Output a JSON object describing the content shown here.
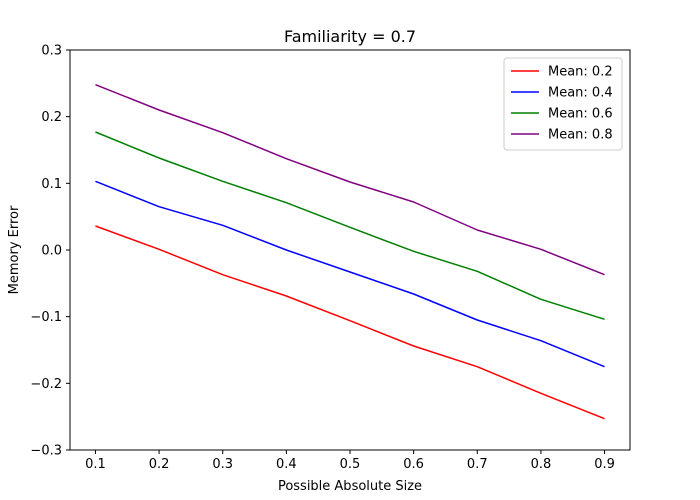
{
  "chart_data": {
    "type": "line",
    "title": "Familiarity = 0.7",
    "xlabel": "Possible Absolute Size",
    "ylabel": "Memory Error",
    "x": [
      0.1,
      0.2,
      0.3,
      0.4,
      0.5,
      0.6,
      0.7,
      0.8,
      0.9
    ],
    "xlim": [
      0.06,
      0.94
    ],
    "ylim": [
      -0.3,
      0.3
    ],
    "xticks": [
      "0.1",
      "0.2",
      "0.3",
      "0.4",
      "0.5",
      "0.6",
      "0.7",
      "0.8",
      "0.9"
    ],
    "yticks": [
      "−0.3",
      "−0.2",
      "−0.1",
      "0.0",
      "0.1",
      "0.2",
      "0.3"
    ],
    "ytick_values": [
      -0.3,
      -0.2,
      -0.1,
      0.0,
      0.1,
      0.2,
      0.3
    ],
    "grid": false,
    "legend_position": "top-right",
    "series": [
      {
        "name": "Mean: 0.2",
        "color": "#ff0000",
        "values": [
          0.036,
          0.001,
          -0.037,
          -0.069,
          -0.106,
          -0.144,
          -0.175,
          -0.215,
          -0.253
        ]
      },
      {
        "name": "Mean: 0.4",
        "color": "#0000ff",
        "values": [
          0.103,
          0.065,
          0.037,
          0.0,
          -0.033,
          -0.066,
          -0.105,
          -0.136,
          -0.175
        ]
      },
      {
        "name": "Mean: 0.6",
        "color": "#008000",
        "values": [
          0.177,
          0.138,
          0.103,
          0.071,
          0.034,
          -0.002,
          -0.032,
          -0.074,
          -0.104
        ]
      },
      {
        "name": "Mean: 0.8",
        "color": "#800080",
        "values": [
          0.248,
          0.21,
          0.176,
          0.137,
          0.102,
          0.072,
          0.03,
          0.001,
          -0.037
        ]
      }
    ]
  }
}
